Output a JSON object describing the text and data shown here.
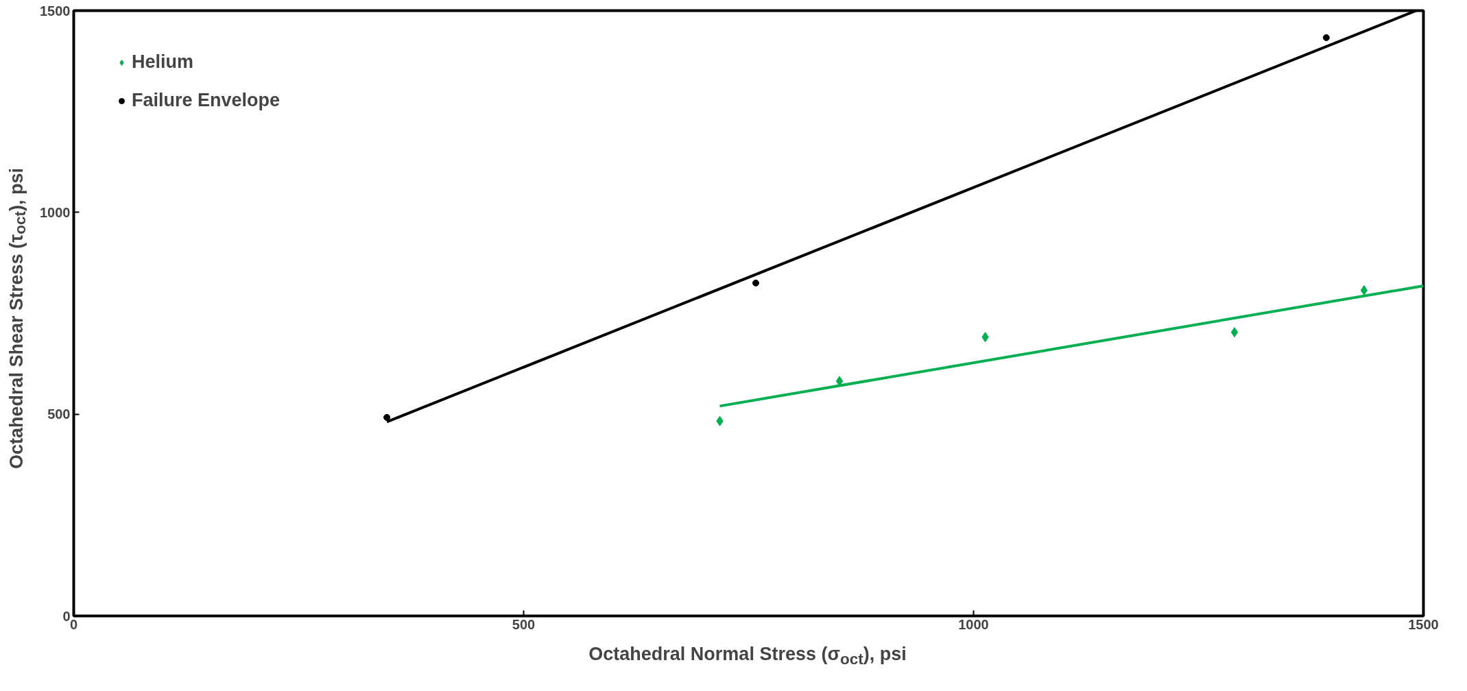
{
  "chart_data": {
    "type": "scatter",
    "xlabel": "Octahedral Normal Stress (σ$_{oct}$), psi",
    "ylabel": "Octahedral Shear Stress (τ$_{oct}$), psi",
    "xlim": [
      0,
      1500
    ],
    "ylim": [
      0,
      1500
    ],
    "xticks": [
      0,
      500,
      1000,
      1500
    ],
    "yticks": [
      0,
      500,
      1000,
      1500
    ],
    "grid": false,
    "legend": "top left",
    "series": [
      {
        "name": "Helium",
        "marker": "diamond",
        "color": "#00b050",
        "x": [
          718,
          851,
          1013,
          1290,
          1434
        ],
        "values": [
          483,
          582,
          691,
          703,
          807
        ]
      },
      {
        "name": "Failure Envelope",
        "marker": "circle",
        "color": "#000000",
        "x": [
          348,
          758,
          1392
        ],
        "values": [
          492,
          825,
          1433
        ]
      },
      {
        "type": "line",
        "color": "#00b050",
        "x": [
          718,
          1500
        ],
        "values": [
          520,
          818
        ]
      },
      {
        "type": "line",
        "color": "#000000",
        "x": [
          348,
          1492
        ],
        "values": [
          481,
          1500
        ]
      }
    ]
  }
}
